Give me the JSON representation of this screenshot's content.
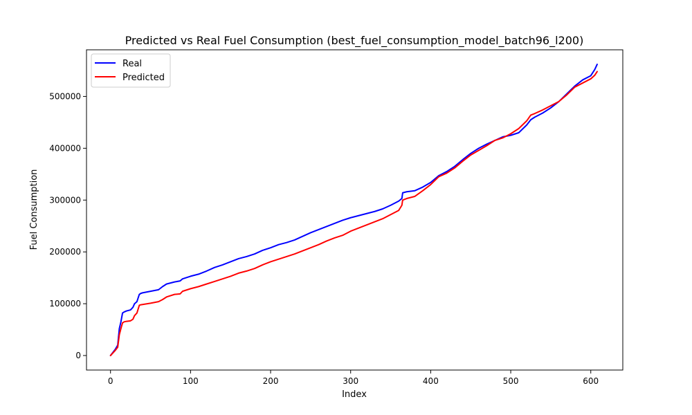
{
  "chart_data": {
    "type": "line",
    "title": "Predicted vs Real Fuel Consumption (best_fuel_consumption_model_batch96_l200)",
    "xlabel": "Index",
    "ylabel": "Fuel Consumption",
    "xlim": [
      -30,
      640
    ],
    "ylim": [
      -28000,
      590000
    ],
    "xticks": [
      0,
      100,
      200,
      300,
      400,
      500,
      600
    ],
    "yticks": [
      0,
      100000,
      200000,
      300000,
      400000,
      500000
    ],
    "grid": false,
    "legend": "top-left",
    "series": [
      {
        "name": "Real",
        "color": "#0000ff",
        "x": [
          0,
          3,
          6,
          9,
          11,
          13,
          15,
          17,
          20,
          25,
          28,
          30,
          33,
          36,
          38,
          40,
          50,
          60,
          65,
          70,
          80,
          87,
          90,
          100,
          110,
          120,
          130,
          140,
          150,
          160,
          170,
          180,
          190,
          200,
          210,
          220,
          230,
          240,
          250,
          260,
          270,
          280,
          290,
          300,
          310,
          320,
          330,
          340,
          350,
          360,
          364,
          365,
          370,
          380,
          390,
          400,
          410,
          420,
          430,
          440,
          450,
          460,
          470,
          480,
          490,
          500,
          510,
          520,
          525,
          530,
          540,
          550,
          560,
          570,
          580,
          590,
          600,
          605,
          608
        ],
        "y": [
          0,
          6000,
          12000,
          20000,
          52000,
          65000,
          82000,
          84000,
          86000,
          88000,
          93000,
          100000,
          104000,
          118000,
          120000,
          121000,
          124000,
          127000,
          133000,
          138000,
          142000,
          144000,
          148000,
          153000,
          157000,
          163000,
          170000,
          175000,
          181000,
          187000,
          191000,
          196000,
          203000,
          208000,
          214000,
          218000,
          223000,
          230000,
          237000,
          243000,
          249000,
          255000,
          261000,
          266000,
          270000,
          274000,
          278000,
          283000,
          290000,
          298000,
          303000,
          314000,
          316000,
          318000,
          325000,
          334000,
          347000,
          355000,
          365000,
          378000,
          390000,
          400000,
          408000,
          415000,
          422000,
          425000,
          430000,
          445000,
          455000,
          460000,
          468000,
          478000,
          490000,
          505000,
          520000,
          532000,
          540000,
          552000,
          562000
        ]
      },
      {
        "name": "Predicted",
        "color": "#ff0000",
        "x": [
          0,
          3,
          6,
          9,
          11,
          13,
          15,
          17,
          20,
          25,
          28,
          30,
          33,
          36,
          38,
          40,
          50,
          60,
          65,
          70,
          80,
          87,
          90,
          100,
          110,
          120,
          130,
          140,
          150,
          160,
          170,
          180,
          190,
          200,
          210,
          220,
          230,
          240,
          250,
          260,
          270,
          280,
          290,
          300,
          310,
          320,
          330,
          340,
          350,
          360,
          364,
          365,
          370,
          380,
          390,
          400,
          410,
          420,
          430,
          440,
          450,
          460,
          470,
          480,
          490,
          500,
          510,
          520,
          525,
          530,
          540,
          550,
          560,
          570,
          580,
          590,
          600,
          605,
          608
        ],
        "y": [
          0,
          5000,
          10000,
          16000,
          40000,
          52000,
          63000,
          65000,
          66000,
          67000,
          70000,
          77000,
          82000,
          97000,
          98000,
          98500,
          101000,
          104000,
          108000,
          113000,
          118000,
          119000,
          124000,
          129000,
          133000,
          138000,
          143000,
          148000,
          153000,
          159000,
          163000,
          168000,
          175000,
          181000,
          186000,
          191000,
          196000,
          202000,
          208000,
          214000,
          221000,
          227000,
          232000,
          240000,
          246000,
          252000,
          258000,
          264000,
          272000,
          280000,
          290000,
          300000,
          303000,
          307000,
          318000,
          330000,
          345000,
          352000,
          362000,
          375000,
          387000,
          396000,
          405000,
          415000,
          420000,
          428000,
          438000,
          453000,
          464000,
          467000,
          474000,
          482000,
          490000,
          503000,
          518000,
          526000,
          534000,
          541000,
          548000
        ]
      }
    ]
  }
}
